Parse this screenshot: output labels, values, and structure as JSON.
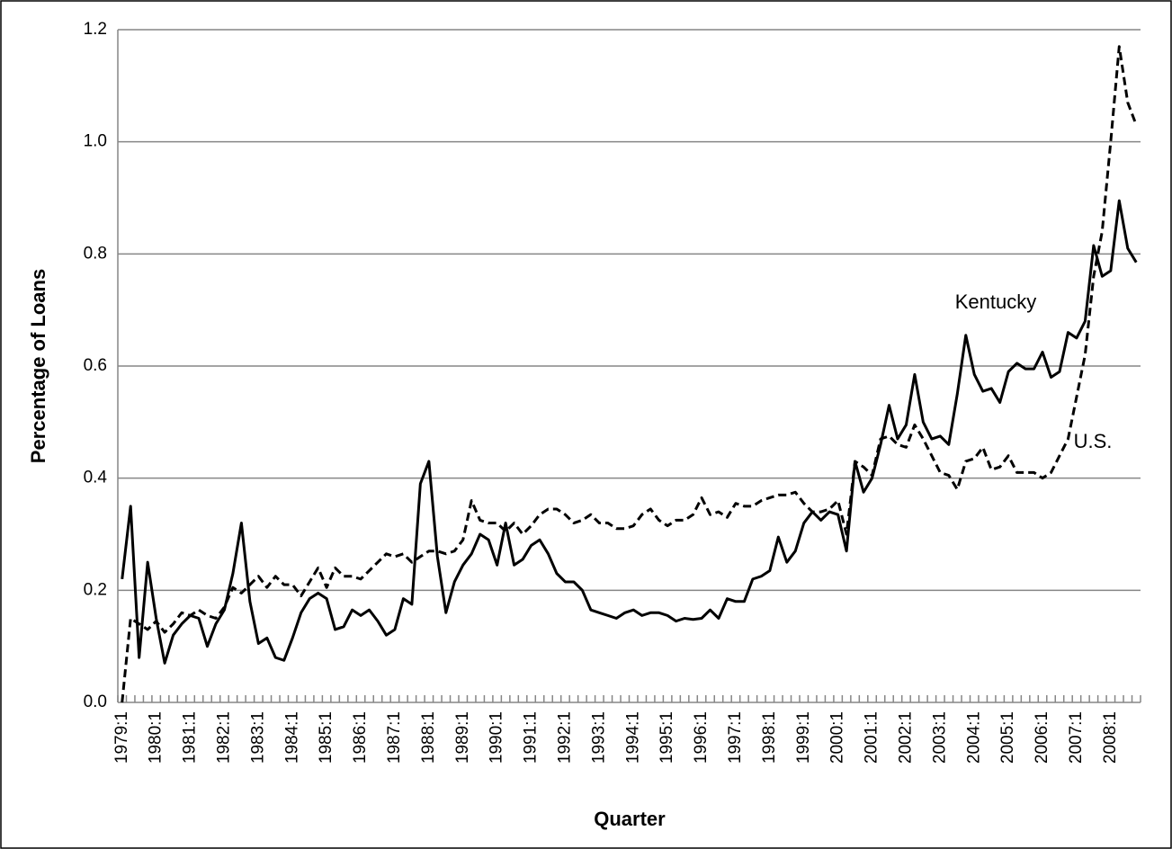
{
  "chart_data": {
    "type": "line",
    "x_label": "Quarter",
    "y_label": "Percentage of Loans",
    "categories": [
      "1979:1",
      null,
      null,
      null,
      "1980:1",
      null,
      null,
      null,
      "1981:1",
      null,
      null,
      null,
      "1982:1",
      null,
      null,
      null,
      "1983:1",
      null,
      null,
      null,
      "1984:1",
      null,
      null,
      null,
      "1985:1",
      null,
      null,
      null,
      "1986:1",
      null,
      null,
      null,
      "1987:1",
      null,
      null,
      null,
      "1988:1",
      null,
      null,
      null,
      "1989:1",
      null,
      null,
      null,
      "1990:1",
      null,
      null,
      null,
      "1991:1",
      null,
      null,
      null,
      "1992:1",
      null,
      null,
      null,
      "1993:1",
      null,
      null,
      null,
      "1994:1",
      null,
      null,
      null,
      "1995:1",
      null,
      null,
      null,
      "1996:1",
      null,
      null,
      null,
      "1997:1",
      null,
      null,
      null,
      "1998:1",
      null,
      null,
      null,
      "1999:1",
      null,
      null,
      null,
      "2000:1",
      null,
      null,
      null,
      "2001:1",
      null,
      null,
      null,
      "2002:1",
      null,
      null,
      null,
      "2003:1",
      null,
      null,
      null,
      "2004:1",
      null,
      null,
      null,
      "2005:1",
      null,
      null,
      null,
      "2006:1",
      null,
      null,
      null,
      "2007:1",
      null,
      null,
      null,
      "2008:1",
      null,
      null,
      null
    ],
    "series": [
      {
        "name": "Kentucky",
        "color": "#000000",
        "style": "solid",
        "values": [
          0.22,
          0.35,
          0.08,
          0.25,
          0.15,
          0.07,
          0.12,
          0.14,
          0.155,
          0.15,
          0.1,
          0.14,
          0.165,
          0.23,
          0.32,
          0.18,
          0.105,
          0.115,
          0.08,
          0.075,
          0.115,
          0.16,
          0.185,
          0.195,
          0.185,
          0.13,
          0.135,
          0.165,
          0.155,
          0.165,
          0.145,
          0.12,
          0.13,
          0.185,
          0.175,
          0.39,
          0.43,
          0.26,
          0.16,
          0.215,
          0.245,
          0.265,
          0.3,
          0.29,
          0.245,
          0.32,
          0.245,
          0.255,
          0.28,
          0.29,
          0.265,
          0.23,
          0.215,
          0.215,
          0.2,
          0.165,
          0.16,
          0.155,
          0.15,
          0.16,
          0.165,
          0.155,
          0.16,
          0.16,
          0.155,
          0.145,
          0.15,
          0.148,
          0.15,
          0.165,
          0.15,
          0.185,
          0.18,
          0.18,
          0.22,
          0.225,
          0.235,
          0.295,
          0.25,
          0.27,
          0.32,
          0.34,
          0.325,
          0.34,
          0.335,
          0.27,
          0.43,
          0.375,
          0.4,
          0.46,
          0.53,
          0.47,
          0.495,
          0.585,
          0.5,
          0.47,
          0.475,
          0.46,
          0.55,
          0.655,
          0.585,
          0.555,
          0.56,
          0.535,
          0.59,
          0.605,
          0.595,
          0.595,
          0.625,
          0.58,
          0.59,
          0.66,
          0.65,
          0.68,
          0.815,
          0.76,
          0.77,
          0.895,
          0.81,
          0.785
        ]
      },
      {
        "name": "U.S.",
        "color": "#000000",
        "style": "dashed",
        "values": [
          0.0,
          0.15,
          0.14,
          0.13,
          0.145,
          0.125,
          0.14,
          0.16,
          0.155,
          0.165,
          0.155,
          0.15,
          0.17,
          0.205,
          0.195,
          0.21,
          0.225,
          0.205,
          0.225,
          0.21,
          0.21,
          0.19,
          0.215,
          0.24,
          0.205,
          0.24,
          0.225,
          0.225,
          0.22,
          0.235,
          0.25,
          0.265,
          0.26,
          0.265,
          0.25,
          0.26,
          0.27,
          0.27,
          0.265,
          0.27,
          0.29,
          0.36,
          0.325,
          0.32,
          0.32,
          0.305,
          0.32,
          0.3,
          0.315,
          0.335,
          0.345,
          0.345,
          0.335,
          0.32,
          0.325,
          0.335,
          0.32,
          0.32,
          0.31,
          0.31,
          0.315,
          0.335,
          0.345,
          0.325,
          0.315,
          0.325,
          0.325,
          0.335,
          0.365,
          0.335,
          0.34,
          0.33,
          0.355,
          0.35,
          0.35,
          0.36,
          0.365,
          0.37,
          0.37,
          0.375,
          0.355,
          0.34,
          0.34,
          0.345,
          0.36,
          0.3,
          0.43,
          0.42,
          0.405,
          0.47,
          0.475,
          0.46,
          0.455,
          0.495,
          0.47,
          0.44,
          0.41,
          0.405,
          0.38,
          0.43,
          0.435,
          0.455,
          0.415,
          0.42,
          0.44,
          0.41,
          0.41,
          0.41,
          0.4,
          0.41,
          0.44,
          0.47,
          0.545,
          0.62,
          0.76,
          0.84,
          1.0,
          1.17,
          1.07,
          1.03
        ]
      }
    ],
    "ylim": [
      0,
      1.2
    ],
    "yticks": [
      {
        "value": 0,
        "label": "0.0"
      },
      0.2,
      0.4,
      0.6,
      0.8,
      {
        "value": 1,
        "label": "1.0"
      },
      1.2
    ],
    "grid": true
  }
}
